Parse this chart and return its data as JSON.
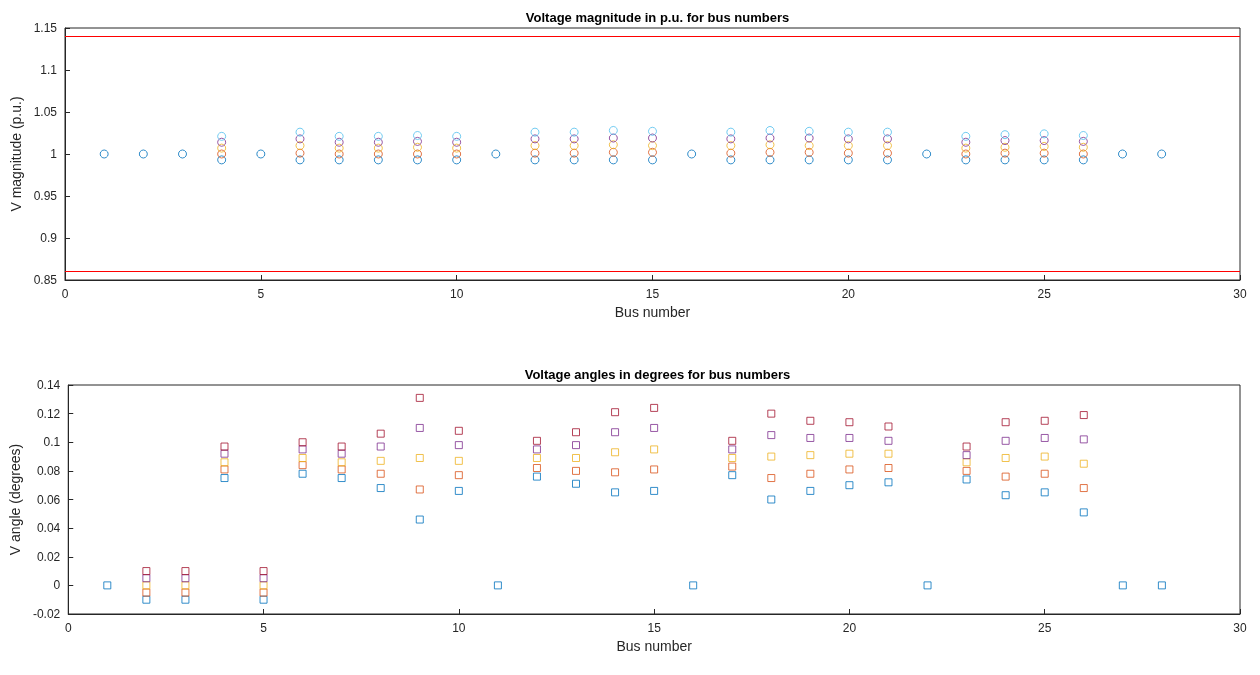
{
  "chart_data": [
    {
      "type": "scatter",
      "title": "Voltage magnitude in p.u. for bus numbers",
      "xlabel": "Bus number",
      "ylabel": "V magnitude (p.u.)",
      "marker": "circle",
      "grid": false,
      "x": [
        1,
        2,
        3,
        4,
        5,
        6,
        7,
        8,
        9,
        10,
        11,
        12,
        13,
        14,
        15,
        16,
        17,
        18,
        19,
        20,
        21,
        22,
        23,
        24,
        25,
        26,
        27,
        28
      ],
      "xlim": [
        0,
        30
      ],
      "xticks": [
        0,
        5,
        10,
        15,
        20,
        25,
        30
      ],
      "ylim": [
        0.85,
        1.15
      ],
      "yticks": [
        0.85,
        0.9,
        0.95,
        1,
        1.05,
        1.1,
        1.15
      ],
      "ref_lines": [
        {
          "axis": "y",
          "value": 1.14,
          "color": "#ff0000"
        },
        {
          "axis": "y",
          "value": 0.86,
          "color": "#ff0000"
        }
      ],
      "series": [
        {
          "color": "#0072bd",
          "values": [
            1,
            1,
            1,
            0.993,
            1,
            0.993,
            0.993,
            0.993,
            0.993,
            0.993,
            1,
            0.993,
            0.993,
            0.993,
            0.993,
            1,
            0.993,
            0.993,
            0.993,
            0.993,
            0.993,
            1,
            0.993,
            0.993,
            0.993,
            0.993,
            1,
            1
          ]
        },
        {
          "color": "#d95319",
          "values": [
            null,
            null,
            null,
            1.0,
            null,
            1.001,
            1.0,
            1.0,
            1.0,
            1.0,
            null,
            1.001,
            1.001,
            1.002,
            1.002,
            null,
            1.001,
            1.002,
            1.002,
            1.001,
            1.001,
            null,
            1.0,
            1.001,
            1.001,
            1.0,
            null,
            null
          ]
        },
        {
          "color": "#edb120",
          "values": [
            null,
            null,
            null,
            1.007,
            null,
            1.01,
            1.007,
            1.007,
            1.008,
            1.007,
            null,
            1.01,
            1.01,
            1.011,
            1.01,
            null,
            1.01,
            1.011,
            1.01,
            1.01,
            1.01,
            null,
            1.007,
            1.008,
            1.009,
            1.008,
            null,
            null
          ]
        },
        {
          "color": "#7e2f8e",
          "values": [
            null,
            null,
            null,
            1.014,
            null,
            1.018,
            1.014,
            1.014,
            1.015,
            1.014,
            null,
            1.018,
            1.018,
            1.019,
            1.019,
            null,
            1.018,
            1.019,
            1.019,
            1.018,
            1.018,
            null,
            1.014,
            1.016,
            1.016,
            1.015,
            null,
            null
          ]
        },
        {
          "color": "#4dbeee",
          "values": [
            null,
            null,
            null,
            1.021,
            null,
            1.026,
            1.021,
            1.021,
            1.022,
            1.021,
            null,
            1.026,
            1.026,
            1.028,
            1.027,
            null,
            1.026,
            1.028,
            1.027,
            1.026,
            1.026,
            null,
            1.021,
            1.023,
            1.024,
            1.022,
            null,
            null
          ]
        }
      ]
    },
    {
      "type": "scatter",
      "title": "Voltage angles in degrees for bus numbers",
      "xlabel": "Bus number",
      "ylabel": "V angle (degrees)",
      "marker": "square",
      "grid": false,
      "x": [
        1,
        2,
        3,
        4,
        5,
        6,
        7,
        8,
        9,
        10,
        11,
        12,
        13,
        14,
        15,
        16,
        17,
        18,
        19,
        20,
        21,
        22,
        23,
        24,
        25,
        26,
        27,
        28
      ],
      "xlim": [
        0,
        30
      ],
      "xticks": [
        0,
        5,
        10,
        15,
        20,
        25,
        30
      ],
      "ylim": [
        -0.02,
        0.14
      ],
      "yticks": [
        -0.02,
        0,
        0.02,
        0.04,
        0.06,
        0.08,
        0.1,
        0.12,
        0.14
      ],
      "series": [
        {
          "color": "#0072bd",
          "values": [
            0,
            -0.01,
            -0.01,
            0.075,
            -0.01,
            0.078,
            0.075,
            0.068,
            0.046,
            0.066,
            0,
            0.076,
            0.071,
            0.065,
            0.066,
            0,
            0.077,
            0.06,
            0.066,
            0.07,
            0.072,
            0,
            0.074,
            0.063,
            0.065,
            0.051,
            0,
            0
          ]
        },
        {
          "color": "#d95319",
          "values": [
            null,
            -0.005,
            -0.005,
            0.081,
            -0.005,
            0.084,
            0.081,
            0.078,
            0.067,
            0.077,
            null,
            0.082,
            0.08,
            0.079,
            0.081,
            null,
            0.083,
            0.075,
            0.078,
            0.081,
            0.082,
            null,
            0.08,
            0.076,
            0.078,
            0.068,
            null,
            null
          ]
        },
        {
          "color": "#edb120",
          "values": [
            null,
            0.0,
            0.0,
            0.086,
            0.0,
            0.089,
            0.086,
            0.087,
            0.089,
            0.087,
            null,
            0.089,
            0.089,
            0.093,
            0.095,
            null,
            0.089,
            0.09,
            0.091,
            0.092,
            0.092,
            null,
            0.086,
            0.089,
            0.09,
            0.085,
            null,
            null
          ]
        },
        {
          "color": "#7e2f8e",
          "values": [
            null,
            0.005,
            0.005,
            0.092,
            0.005,
            0.095,
            0.092,
            0.097,
            0.11,
            0.098,
            null,
            0.095,
            0.098,
            0.107,
            0.11,
            null,
            0.095,
            0.105,
            0.103,
            0.103,
            0.101,
            null,
            0.091,
            0.101,
            0.103,
            0.102,
            null,
            null
          ]
        },
        {
          "color": "#a2142f",
          "values": [
            null,
            0.01,
            0.01,
            0.097,
            0.01,
            0.1,
            0.097,
            0.106,
            0.131,
            0.108,
            null,
            0.101,
            0.107,
            0.121,
            0.124,
            null,
            0.101,
            0.12,
            0.115,
            0.114,
            0.111,
            null,
            0.097,
            0.114,
            0.115,
            0.119,
            null,
            null
          ]
        }
      ]
    }
  ]
}
